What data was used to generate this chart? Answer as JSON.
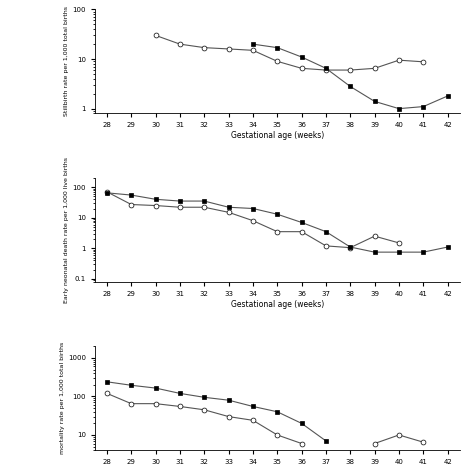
{
  "gestational_age": [
    28,
    29,
    30,
    31,
    32,
    33,
    34,
    35,
    36,
    37,
    38,
    39,
    40,
    41,
    42
  ],
  "stillbirth_filled": [
    null,
    null,
    null,
    null,
    null,
    null,
    20,
    17,
    11,
    6.5,
    2.8,
    1.4,
    1.0,
    1.1,
    1.8
  ],
  "stillbirth_open": [
    null,
    null,
    30,
    20,
    17,
    16,
    15,
    9,
    6.5,
    6.0,
    6.0,
    6.5,
    9.5,
    8.8,
    null
  ],
  "ennd_filled": [
    65,
    55,
    40,
    35,
    35,
    22,
    20,
    13,
    7,
    3.5,
    1.1,
    0.75,
    0.75,
    0.75,
    1.1
  ],
  "ennd_open": [
    70,
    27,
    25,
    22,
    22,
    15,
    8,
    3.5,
    3.5,
    1.2,
    1.05,
    2.5,
    1.5,
    null,
    null
  ],
  "pmr_filled": [
    240,
    195,
    165,
    120,
    95,
    80,
    55,
    40,
    20,
    7,
    null,
    null,
    null,
    null,
    null
  ],
  "pmr_open": [
    120,
    65,
    65,
    55,
    45,
    30,
    24,
    10,
    6,
    null,
    null,
    6,
    10,
    6.5,
    null
  ],
  "ylabel1": "Stillbirth rate per 1,000 total births",
  "ylabel2": "Early neonatal death rate per 1,000 live births",
  "ylabel3": "mortality rate per 1,000 total births",
  "xlabel": "Gestational age (weeks)"
}
